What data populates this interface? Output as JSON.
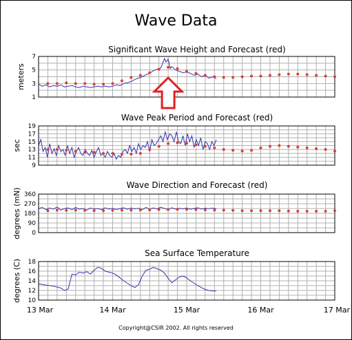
{
  "title": "Wave Data",
  "copyright": "Copyright@CSIR 2002.  All rights reserved",
  "x_ticks": [
    "13 Mar",
    "14 Mar",
    "15 Mar",
    "16 Mar",
    "17 Mar"
  ],
  "colors": {
    "measured": "#3333aa",
    "forecast": "#d94030",
    "arrow": "#e02020",
    "grid": "#b0b0b0"
  },
  "annotation": {
    "type": "arrow-up",
    "x_day": 1.75,
    "color": "#e02020"
  },
  "chart_data": [
    {
      "type": "line",
      "title": "Significant Wave Height and Forecast (red)",
      "ylabel": "meters",
      "yticks": [
        1,
        3,
        5,
        7
      ],
      "ylim": [
        1,
        7
      ],
      "xlim": [
        0,
        4
      ],
      "series": [
        {
          "name": "measured",
          "style": "line",
          "x": [
            0,
            0.05,
            0.1,
            0.15,
            0.2,
            0.25,
            0.3,
            0.35,
            0.4,
            0.45,
            0.5,
            0.55,
            0.6,
            0.65,
            0.7,
            0.75,
            0.8,
            0.85,
            0.9,
            0.95,
            1.0,
            1.05,
            1.1,
            1.15,
            1.2,
            1.25,
            1.3,
            1.35,
            1.4,
            1.45,
            1.5,
            1.55,
            1.6,
            1.65,
            1.7,
            1.72,
            1.75,
            1.78,
            1.8,
            1.85,
            1.9,
            1.95,
            2.0,
            2.05,
            2.1,
            2.15,
            2.2,
            2.25,
            2.3,
            2.35,
            2.4
          ],
          "y": [
            2.9,
            2.6,
            2.8,
            2.5,
            2.7,
            2.6,
            2.8,
            2.5,
            2.6,
            2.7,
            2.5,
            2.4,
            2.6,
            2.5,
            2.4,
            2.5,
            2.6,
            2.5,
            2.6,
            2.5,
            2.6,
            2.8,
            2.7,
            3.0,
            3.1,
            3.3,
            3.6,
            3.8,
            4.0,
            4.3,
            4.5,
            4.9,
            5.1,
            5.3,
            6.7,
            6.2,
            6.6,
            5.2,
            5.5,
            5.0,
            4.8,
            4.6,
            4.7,
            4.5,
            4.2,
            4.4,
            4.0,
            4.2,
            3.8,
            4.0,
            3.7
          ]
        },
        {
          "name": "forecast",
          "style": "dots",
          "x": [
            0.125,
            0.25,
            0.375,
            0.5,
            0.625,
            0.75,
            0.875,
            1.0,
            1.125,
            1.25,
            1.375,
            1.5,
            1.625,
            1.75,
            1.875,
            2.0,
            2.125,
            2.25,
            2.375,
            2.5,
            2.625,
            2.75,
            2.875,
            3.0,
            3.125,
            3.25,
            3.375,
            3.5,
            3.625,
            3.75,
            3.875,
            4.0
          ],
          "y": [
            3.0,
            3.0,
            3.1,
            3.0,
            3.0,
            2.9,
            2.9,
            3.0,
            3.4,
            3.9,
            4.2,
            4.6,
            5.1,
            5.4,
            5.2,
            4.8,
            4.5,
            4.2,
            4.0,
            3.9,
            3.9,
            4.0,
            4.1,
            4.1,
            4.2,
            4.3,
            4.4,
            4.4,
            4.3,
            4.2,
            4.1,
            4.0
          ]
        }
      ]
    },
    {
      "type": "line",
      "title": "Wave Peak Period and Forecast (red)",
      "ylabel": "sec",
      "yticks": [
        9,
        11,
        13,
        15,
        17,
        19
      ],
      "ylim": [
        9,
        19
      ],
      "xlim": [
        0,
        4
      ],
      "series": [
        {
          "name": "measured",
          "style": "line",
          "x": [
            0,
            0.03,
            0.06,
            0.09,
            0.12,
            0.15,
            0.18,
            0.21,
            0.24,
            0.27,
            0.3,
            0.33,
            0.36,
            0.39,
            0.42,
            0.45,
            0.48,
            0.51,
            0.54,
            0.57,
            0.6,
            0.63,
            0.66,
            0.69,
            0.72,
            0.75,
            0.78,
            0.81,
            0.84,
            0.87,
            0.9,
            0.93,
            0.96,
            0.99,
            1.02,
            1.05,
            1.08,
            1.11,
            1.14,
            1.17,
            1.2,
            1.23,
            1.26,
            1.29,
            1.32,
            1.35,
            1.38,
            1.41,
            1.44,
            1.47,
            1.5,
            1.53,
            1.56,
            1.59,
            1.62,
            1.65,
            1.68,
            1.71,
            1.74,
            1.77,
            1.8,
            1.83,
            1.86,
            1.89,
            1.92,
            1.95,
            1.98,
            2.01,
            2.04,
            2.07,
            2.1,
            2.13,
            2.16,
            2.19,
            2.22,
            2.25,
            2.28,
            2.31,
            2.34,
            2.37,
            2.4
          ],
          "y": [
            14,
            15.5,
            12.5,
            13.5,
            11,
            14.5,
            12,
            13.2,
            11.5,
            14,
            12.5,
            13,
            11.5,
            14,
            12,
            13.5,
            11,
            12.5,
            13.5,
            12,
            11.5,
            13,
            12,
            11.5,
            12.8,
            11,
            12.5,
            13.5,
            11.5,
            12,
            11,
            12.5,
            11.5,
            11,
            12,
            10.5,
            11.5,
            11,
            12.5,
            13,
            12,
            14,
            12.5,
            13.5,
            12,
            14.5,
            13,
            14,
            13.5,
            15,
            12.5,
            15.5,
            14,
            14.5,
            15.5,
            16.5,
            15,
            17.5,
            15.5,
            17,
            16.5,
            15,
            17.5,
            15,
            14.5,
            16.5,
            14,
            17,
            15,
            16.5,
            13.5,
            15.5,
            14,
            16,
            13,
            15,
            14.5,
            13,
            15,
            14,
            15.5
          ]
        },
        {
          "name": "forecast",
          "style": "dots",
          "x": [
            0.125,
            0.25,
            0.375,
            0.5,
            0.625,
            0.75,
            0.875,
            1.0,
            1.125,
            1.25,
            1.375,
            1.5,
            1.625,
            1.75,
            1.875,
            2.0,
            2.125,
            2.25,
            2.375,
            2.5,
            2.625,
            2.75,
            2.875,
            3.0,
            3.125,
            3.25,
            3.375,
            3.5,
            3.625,
            3.75,
            3.875,
            4.0
          ],
          "y": [
            13.0,
            13.0,
            12.8,
            12.5,
            12.3,
            12.3,
            12.0,
            12.0,
            11.8,
            11.8,
            12.0,
            13.0,
            13.8,
            14.5,
            14.7,
            14.6,
            14.2,
            13.8,
            13.4,
            13.0,
            12.8,
            12.6,
            12.8,
            13.4,
            13.8,
            14.0,
            13.8,
            13.6,
            13.4,
            13.2,
            13.0,
            12.6
          ]
        }
      ]
    },
    {
      "type": "line",
      "title": "Wave Direction and Forecast (red)",
      "ylabel": "degrees (mN)",
      "yticks": [
        0,
        90,
        180,
        270,
        360
      ],
      "ylim": [
        0,
        360
      ],
      "xlim": [
        0,
        4
      ],
      "series": [
        {
          "name": "measured",
          "style": "line",
          "x": [
            0,
            0.05,
            0.1,
            0.15,
            0.2,
            0.25,
            0.3,
            0.35,
            0.4,
            0.45,
            0.5,
            0.55,
            0.6,
            0.65,
            0.7,
            0.75,
            0.8,
            0.85,
            0.9,
            0.95,
            1.0,
            1.05,
            1.1,
            1.15,
            1.2,
            1.25,
            1.3,
            1.35,
            1.4,
            1.45,
            1.5,
            1.55,
            1.6,
            1.65,
            1.7,
            1.75,
            1.8,
            1.85,
            1.9,
            1.95,
            2.0,
            2.05,
            2.1,
            2.15,
            2.2,
            2.25,
            2.3,
            2.35,
            2.4
          ],
          "y": [
            225,
            235,
            215,
            230,
            220,
            240,
            210,
            225,
            230,
            215,
            235,
            220,
            225,
            210,
            230,
            220,
            225,
            215,
            232,
            220,
            228,
            215,
            225,
            232,
            218,
            230,
            222,
            228,
            215,
            235,
            220,
            230,
            222,
            238,
            225,
            218,
            232,
            220,
            228,
            222,
            230,
            218,
            226,
            232,
            220,
            228,
            224,
            230,
            222
          ]
        },
        {
          "name": "forecast",
          "style": "dots",
          "x": [
            0.125,
            0.25,
            0.375,
            0.5,
            0.625,
            0.75,
            0.875,
            1.0,
            1.125,
            1.25,
            1.375,
            1.5,
            1.625,
            1.75,
            1.875,
            2.0,
            2.125,
            2.25,
            2.375,
            2.5,
            2.625,
            2.75,
            2.875,
            3.0,
            3.125,
            3.25,
            3.375,
            3.5,
            3.625,
            3.75,
            3.875,
            4.0
          ],
          "y": [
            205,
            210,
            208,
            210,
            208,
            205,
            205,
            208,
            210,
            210,
            212,
            212,
            215,
            215,
            218,
            218,
            215,
            212,
            210,
            210,
            208,
            205,
            205,
            205,
            205,
            205,
            202,
            200,
            200,
            200,
            200,
            205
          ]
        }
      ]
    },
    {
      "type": "line",
      "title": "Sea Surface Temperature",
      "ylabel": "degrees (C)",
      "yticks": [
        10,
        12,
        14,
        16,
        18
      ],
      "ylim": [
        10,
        18
      ],
      "xlim": [
        0,
        4
      ],
      "series": [
        {
          "name": "measured",
          "style": "line",
          "x": [
            0,
            0.1,
            0.2,
            0.3,
            0.35,
            0.4,
            0.45,
            0.5,
            0.55,
            0.6,
            0.65,
            0.7,
            0.75,
            0.8,
            0.85,
            0.9,
            0.95,
            1.0,
            1.05,
            1.1,
            1.15,
            1.2,
            1.25,
            1.3,
            1.35,
            1.4,
            1.45,
            1.5,
            1.55,
            1.6,
            1.65,
            1.7,
            1.75,
            1.8,
            1.85,
            1.9,
            1.95,
            2.0,
            2.05,
            2.1,
            2.15,
            2.2,
            2.25,
            2.3,
            2.35,
            2.4
          ],
          "y": [
            13.4,
            13.1,
            12.9,
            12.5,
            12.0,
            12.3,
            15.4,
            15.2,
            15.8,
            15.6,
            15.9,
            15.4,
            16.2,
            16.8,
            16.6,
            16.0,
            15.8,
            15.6,
            15.2,
            14.6,
            14.0,
            13.5,
            13.0,
            12.6,
            13.2,
            15.0,
            16.2,
            16.4,
            16.8,
            16.5,
            16.2,
            15.6,
            14.5,
            13.6,
            14.2,
            14.8,
            15.0,
            14.6,
            14.0,
            13.5,
            13.0,
            12.6,
            12.2,
            12.0,
            11.9,
            11.9
          ]
        }
      ]
    }
  ]
}
